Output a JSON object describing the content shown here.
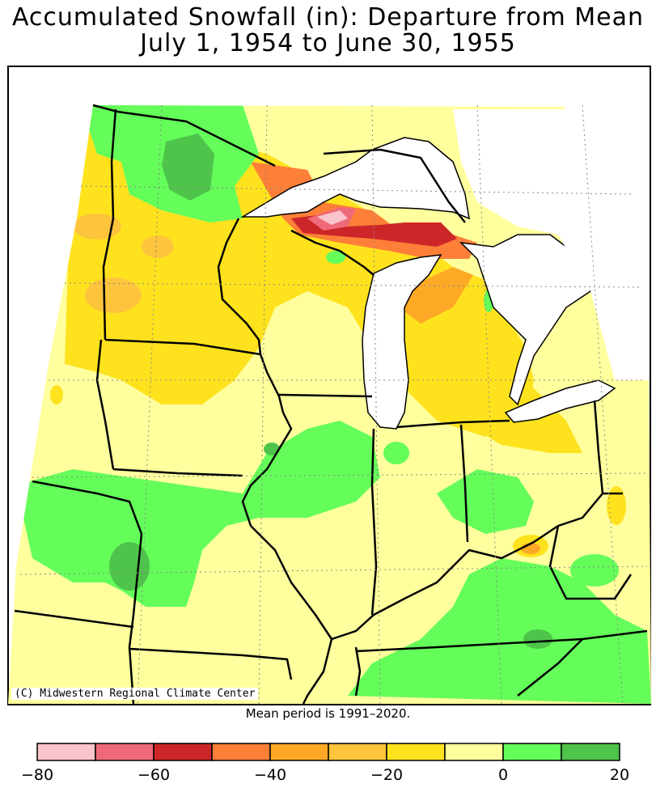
{
  "title": {
    "line1": "Accumulated Snowfall (in): Departure from Mean",
    "line2": "July 1, 1954 to June 30, 1955"
  },
  "credit": "(C) Midwestern Regional Climate Center",
  "footnote": "Mean period is 1991–2020.",
  "colors": {
    "land_default": "#ffff9e",
    "lake": "#ffffff",
    "border": "#000000"
  },
  "legend": {
    "bins": [
      {
        "from": -80,
        "to": -70,
        "color": "#f9c4cc"
      },
      {
        "from": -70,
        "to": -60,
        "color": "#ef6a78"
      },
      {
        "from": -60,
        "to": -50,
        "color": "#cc2628"
      },
      {
        "from": -50,
        "to": -40,
        "color": "#fd7f38"
      },
      {
        "from": -40,
        "to": -30,
        "color": "#fea926"
      },
      {
        "from": -30,
        "to": -20,
        "color": "#fec43c"
      },
      {
        "from": -20,
        "to": -10,
        "color": "#ffe21e"
      },
      {
        "from": -10,
        "to": 0,
        "color": "#ffff9e"
      },
      {
        "from": 0,
        "to": 10,
        "color": "#64fd5a"
      },
      {
        "from": 10,
        "to": 20,
        "color": "#4ec44a"
      }
    ],
    "tick_labels": [
      "−80",
      "−60",
      "−40",
      "−20",
      "0",
      "20"
    ]
  }
}
